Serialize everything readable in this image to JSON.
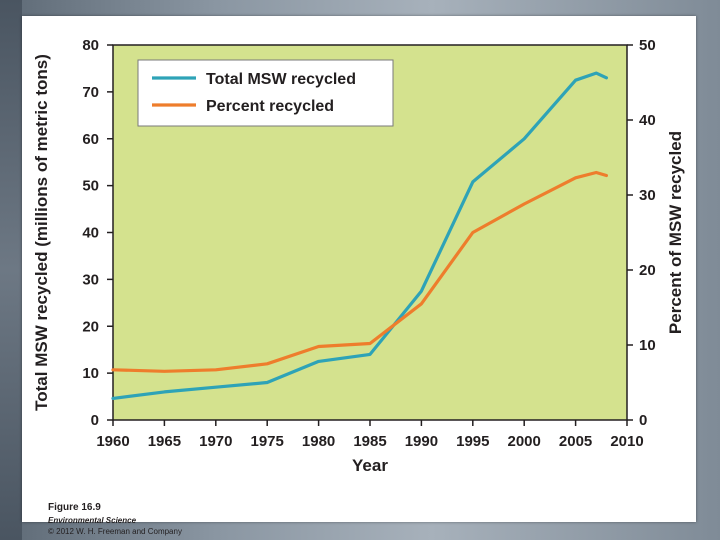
{
  "chart_data": {
    "type": "line",
    "xlabel": "Year",
    "ylabel": "Total MSW recycled (millions of metric tons)",
    "y2label": "Percent of MSW recycled",
    "xlim": [
      1960,
      2010
    ],
    "ylim": [
      0,
      80
    ],
    "y2lim": [
      0,
      50
    ],
    "x_ticks": [
      1960,
      1965,
      1970,
      1975,
      1980,
      1985,
      1990,
      1995,
      2000,
      2005,
      2010
    ],
    "y_ticks": [
      0,
      10,
      20,
      30,
      40,
      50,
      60,
      70,
      80
    ],
    "y2_ticks": [
      0,
      10,
      20,
      30,
      40,
      50
    ],
    "legend_position": "top-left",
    "plot_background": "#d4e28e",
    "series": [
      {
        "name": "Total MSW recycled",
        "axis": "left",
        "color": "#2ea3b7",
        "x": [
          1960,
          1965,
          1970,
          1975,
          1980,
          1985,
          1990,
          1995,
          2000,
          2005,
          2007,
          2008
        ],
        "values": [
          4.6,
          6.0,
          7.0,
          8.0,
          12.5,
          14.0,
          27.5,
          50.8,
          60.0,
          72.5,
          74.0,
          73.0
        ]
      },
      {
        "name": "Percent recycled",
        "axis": "right",
        "color": "#ee7d2c",
        "x": [
          1960,
          1965,
          1970,
          1975,
          1980,
          1985,
          1990,
          1995,
          2000,
          2005,
          2007,
          2008
        ],
        "values": [
          6.7,
          6.5,
          6.7,
          7.5,
          9.8,
          10.2,
          15.5,
          25.0,
          28.8,
          32.3,
          33.0,
          32.6
        ]
      }
    ]
  },
  "caption": {
    "figure": "Figure 16.9",
    "book": "Environmental Science",
    "copyright": "© 2012 W. H. Freeman and Company"
  }
}
